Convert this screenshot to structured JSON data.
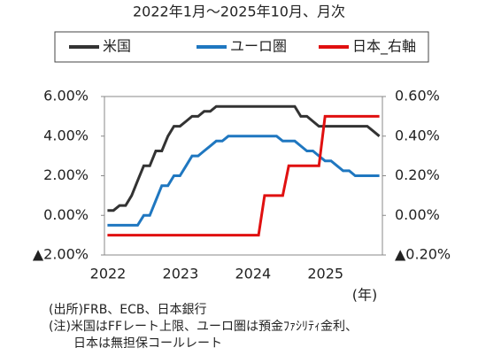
{
  "chart_data": {
    "type": "line",
    "title": "2022年1月～2025年10月、月次",
    "x_label": "(年)",
    "categories": [
      "2022",
      null,
      null,
      null,
      null,
      null,
      null,
      null,
      null,
      null,
      null,
      null,
      "2023",
      null,
      null,
      null,
      null,
      null,
      null,
      null,
      null,
      null,
      null,
      null,
      "2024",
      null,
      null,
      null,
      null,
      null,
      null,
      null,
      null,
      null,
      null,
      null,
      "2025",
      null,
      null,
      null,
      null,
      null,
      null,
      null,
      null,
      null
    ],
    "series": [
      {
        "name": "米国",
        "color": "#333333",
        "axis": "y",
        "values": [
          0.25,
          0.25,
          0.5,
          0.5,
          1.0,
          1.75,
          2.5,
          2.5,
          3.25,
          3.25,
          4.0,
          4.5,
          4.5,
          4.75,
          5.0,
          5.0,
          5.25,
          5.25,
          5.5,
          5.5,
          5.5,
          5.5,
          5.5,
          5.5,
          5.5,
          5.5,
          5.5,
          5.5,
          5.5,
          5.5,
          5.5,
          5.5,
          5.0,
          5.0,
          4.75,
          4.5,
          4.5,
          4.5,
          4.5,
          4.5,
          4.5,
          4.5,
          4.5,
          4.5,
          4.25,
          4.0
        ]
      },
      {
        "name": "ユーロ圏",
        "color": "#1f77c0",
        "axis": "y",
        "values": [
          -0.5,
          -0.5,
          -0.5,
          -0.5,
          -0.5,
          -0.5,
          0.0,
          0.0,
          0.75,
          1.5,
          1.5,
          2.0,
          2.0,
          2.5,
          3.0,
          3.0,
          3.25,
          3.5,
          3.75,
          3.75,
          4.0,
          4.0,
          4.0,
          4.0,
          4.0,
          4.0,
          4.0,
          4.0,
          4.0,
          3.75,
          3.75,
          3.75,
          3.5,
          3.25,
          3.25,
          3.0,
          2.75,
          2.75,
          2.5,
          2.25,
          2.25,
          2.0,
          2.0,
          2.0,
          2.0,
          2.0
        ]
      },
      {
        "name": "日本_右軸",
        "color": "#e01010",
        "axis": "y2",
        "values": [
          -0.1,
          -0.1,
          -0.1,
          -0.1,
          -0.1,
          -0.1,
          -0.1,
          -0.1,
          -0.1,
          -0.1,
          -0.1,
          -0.1,
          -0.1,
          -0.1,
          -0.1,
          -0.1,
          -0.1,
          -0.1,
          -0.1,
          -0.1,
          -0.1,
          -0.1,
          -0.1,
          -0.1,
          -0.1,
          -0.1,
          0.1,
          0.1,
          0.1,
          0.1,
          0.25,
          0.25,
          0.25,
          0.25,
          0.25,
          0.25,
          0.5,
          0.5,
          0.5,
          0.5,
          0.5,
          0.5,
          0.5,
          0.5,
          0.5,
          0.5
        ]
      }
    ],
    "ylim": [
      -2,
      6
    ],
    "yticks": [
      {
        "value": -2,
        "label": "▲2.00%"
      },
      {
        "value": 0,
        "label": "0.00%"
      },
      {
        "value": 2,
        "label": "2.00%"
      },
      {
        "value": 4,
        "label": "4.00%"
      },
      {
        "value": 6,
        "label": "6.00%"
      }
    ],
    "y2lim": [
      -0.2,
      0.6
    ],
    "y2ticks": [
      {
        "value": -0.2,
        "label": "▲0.20%"
      },
      {
        "value": 0,
        "label": "0.00%"
      },
      {
        "value": 0.2,
        "label": "0.20%"
      },
      {
        "value": 0.4,
        "label": "0.40%"
      },
      {
        "value": 0.6,
        "label": "0.60%"
      }
    ],
    "negative_tick_color": "#e01010",
    "grid": false,
    "legend": "top",
    "notes": [
      "(出所)FRB、ECB、日本銀行",
      "(注)米国はFFレート上限、ユーロ圏は預金ﾌｧｼﾘﾃｨ金利、",
      "　　日本は無担保コールレート"
    ]
  }
}
